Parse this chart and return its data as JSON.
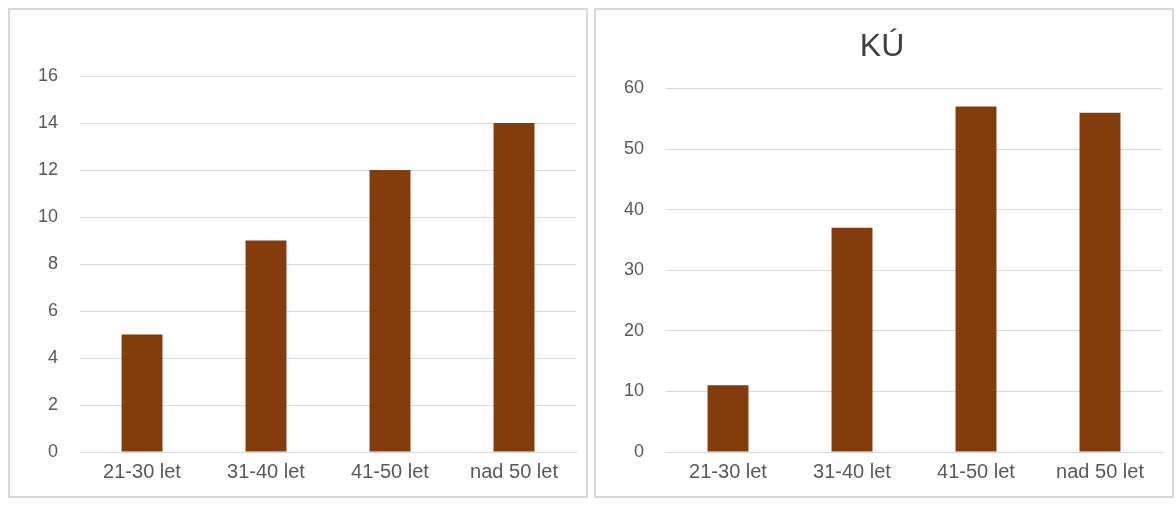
{
  "chart_data": [
    {
      "type": "bar",
      "categories": [
        "21-30 let",
        "31-40 let",
        "41-50 let",
        "nad 50 let"
      ],
      "values": [
        5,
        9,
        12,
        14
      ],
      "color": "#843c0c",
      "ylim": [
        0,
        16
      ],
      "yticks": [
        0,
        2,
        4,
        6,
        8,
        10,
        12,
        14,
        16
      ],
      "grid": "y"
    },
    {
      "type": "bar",
      "title": "KÚ",
      "categories": [
        "21-30 let",
        "31-40 let",
        "41-50 let",
        "nad 50 let"
      ],
      "values": [
        11,
        37,
        57,
        56
      ],
      "color": "#843c0c",
      "ylim": [
        0,
        60
      ],
      "yticks": [
        0,
        10,
        20,
        30,
        40,
        50,
        60
      ],
      "grid": "y"
    }
  ]
}
